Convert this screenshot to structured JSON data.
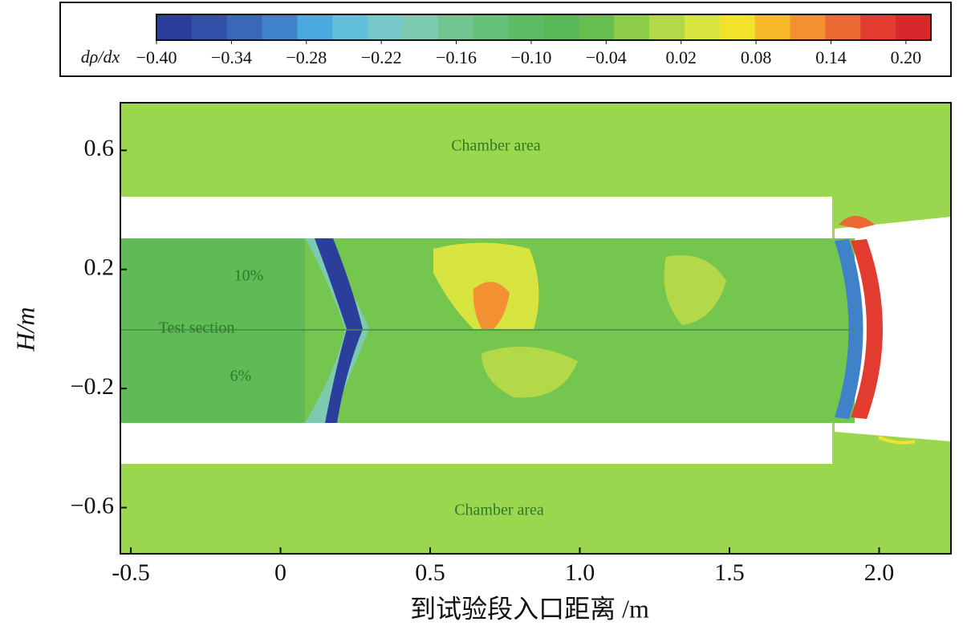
{
  "chart_data": {
    "type": "contour",
    "colorbar": {
      "label": "dρ/dx",
      "clim": [
        -0.4,
        0.22
      ],
      "colors": [
        "#2c3e9c",
        "#3350a8",
        "#3a68b8",
        "#3f82c9",
        "#4aa9dd",
        "#62bfd9",
        "#76c9c8",
        "#7ccbb0",
        "#72c591",
        "#66c178",
        "#5dbb63",
        "#58b857",
        "#66be4f",
        "#8dcc48",
        "#b4d948",
        "#d8e540",
        "#f2e22c",
        "#f7b92a",
        "#f39132",
        "#eb6a34",
        "#e23b2f",
        "#d8282c"
      ],
      "ticks": [
        {
          "value": -0.4,
          "label": "−0.40"
        },
        {
          "value": -0.34,
          "label": "−0.34"
        },
        {
          "value": -0.28,
          "label": "−0.28"
        },
        {
          "value": -0.22,
          "label": "−0.22"
        },
        {
          "value": -0.16,
          "label": "−0.16"
        },
        {
          "value": -0.1,
          "label": "−0.10"
        },
        {
          "value": -0.04,
          "label": "−0.04"
        },
        {
          "value": 0.02,
          "label": "0.02"
        },
        {
          "value": 0.08,
          "label": "0.08"
        },
        {
          "value": 0.14,
          "label": "0.14"
        },
        {
          "value": 0.2,
          "label": "0.20"
        }
      ]
    },
    "x_label": "到试验段入口距离 /m",
    "y_label": "H/m",
    "xlim": [
      -0.535,
      2.24
    ],
    "ylim": [
      -0.755,
      0.76
    ],
    "xticks": [
      -0.5,
      0,
      0.5,
      {
        "value": 1.0,
        "label": "1.0"
      },
      1.5,
      {
        "value": 2.0,
        "label": "2.0"
      }
    ],
    "yticks": [
      0.6,
      0.2,
      -0.2,
      -0.6
    ],
    "annotations": [
      "Chamber area",
      "10%",
      "Test section",
      "6%",
      "Chamber area"
    ]
  }
}
